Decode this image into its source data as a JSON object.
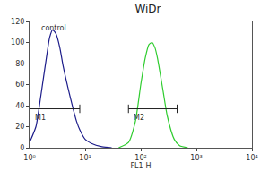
{
  "chart_data": {
    "type": "line",
    "title": "WiDr",
    "x_label": "FL1-H",
    "log": "x",
    "xlim": [
      1,
      10000
    ],
    "xticks": [
      {
        "value": 1,
        "label": "10⁰"
      },
      {
        "value": 10,
        "label": "10¹"
      },
      {
        "value": 100,
        "label": "10²"
      },
      {
        "value": 1000,
        "label": "10³"
      },
      {
        "value": 10000,
        "label": "10⁴"
      }
    ],
    "ylim": [
      0,
      120
    ],
    "yticks": [
      0,
      20,
      40,
      60,
      80,
      100,
      120
    ],
    "grid": false,
    "series": [
      {
        "name": "control",
        "color": "#1c1c8a",
        "x": [
          1,
          1.3,
          1.6,
          2,
          2.3,
          2.6,
          3,
          3.5,
          4,
          5,
          6,
          7,
          8,
          10,
          13,
          20,
          30
        ],
        "values": [
          5,
          20,
          50,
          85,
          105,
          112,
          108,
          95,
          78,
          55,
          38,
          25,
          17,
          8,
          4,
          1,
          0
        ]
      },
      {
        "name": "",
        "color": "#2ecc2e",
        "x": [
          40,
          60,
          80,
          100,
          120,
          140,
          160,
          180,
          200,
          250,
          300,
          400,
          500,
          700
        ],
        "values": [
          0,
          5,
          25,
          60,
          85,
          98,
          100,
          95,
          85,
          55,
          30,
          8,
          2,
          0
        ]
      }
    ],
    "annotations": [
      {
        "text": "control",
        "x": 1.5,
        "y": 108
      }
    ],
    "gates": [
      {
        "label": "M1",
        "range": [
          1,
          8
        ],
        "y": 37
      },
      {
        "label": "M2",
        "range": [
          60,
          450
        ],
        "y": 37
      }
    ]
  }
}
